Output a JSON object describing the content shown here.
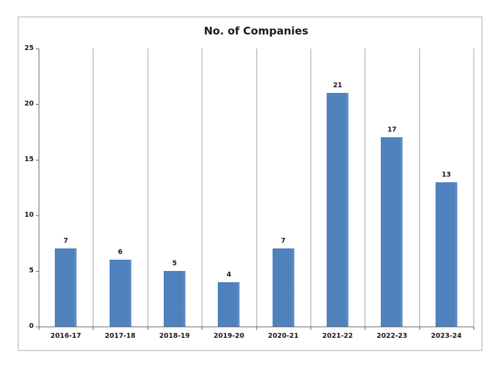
{
  "chart_data": {
    "type": "bar",
    "title": "No. of Companies",
    "categories": [
      "2016-17",
      "2017-18",
      "2018-19",
      "2019-20",
      "2020-21",
      "2021-22",
      "2022-23",
      "2023-24"
    ],
    "values": [
      7,
      6,
      5,
      4,
      7,
      21,
      17,
      13
    ],
    "xlabel": "",
    "ylabel": "",
    "ylim": [
      0,
      25
    ],
    "yticks": [
      0,
      5,
      10,
      15,
      20,
      25
    ],
    "grid": "vertical-category-boundaries",
    "legend_position": "none",
    "data_labels_shown": true,
    "colors": {
      "bar": "#4F81BD",
      "gridline": "#A6A6A6",
      "axis": "#6E6E6E",
      "label_text": "#1A1A1A",
      "frame_border": "#D6D6D6",
      "background": "#FFFFFF"
    }
  }
}
